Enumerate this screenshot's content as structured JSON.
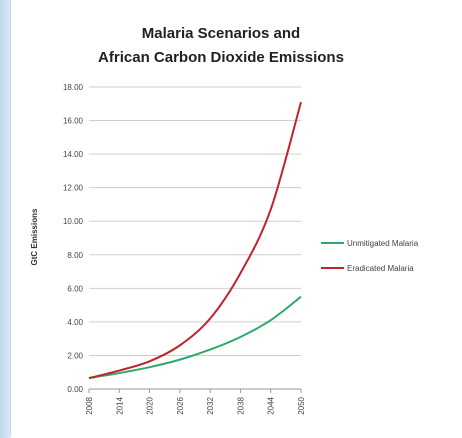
{
  "chart_data": {
    "type": "line",
    "title_lines": [
      "Malaria Scenarios and",
      "African Carbon Dioxide Emissions"
    ],
    "ylabel": "GtC Emissions",
    "xlabel": "",
    "ylim": [
      0,
      18
    ],
    "y_ticks": [
      "0.00",
      "2.00",
      "4.00",
      "6.00",
      "8.00",
      "10.00",
      "12.00",
      "14.00",
      "16.00",
      "18.00"
    ],
    "x_range": [
      2008,
      2050
    ],
    "x_ticks": [
      "2008",
      "2014",
      "2020",
      "2026",
      "2032",
      "2038",
      "2044",
      "2050"
    ],
    "grid": true,
    "legend_position": "right",
    "series": [
      {
        "name": "Unmitigated Malaria",
        "color": "#2ea86b",
        "x": [
          2008,
          2014,
          2020,
          2026,
          2032,
          2038,
          2044,
          2050
        ],
        "values": [
          0.65,
          0.95,
          1.3,
          1.75,
          2.35,
          3.1,
          4.1,
          5.5
        ]
      },
      {
        "name": "Eradicated Malaria",
        "color": "#c0232b",
        "x": [
          2008,
          2014,
          2020,
          2026,
          2032,
          2038,
          2044,
          2050
        ],
        "values": [
          0.65,
          1.1,
          1.65,
          2.6,
          4.2,
          6.9,
          10.7,
          17.1
        ]
      }
    ]
  }
}
